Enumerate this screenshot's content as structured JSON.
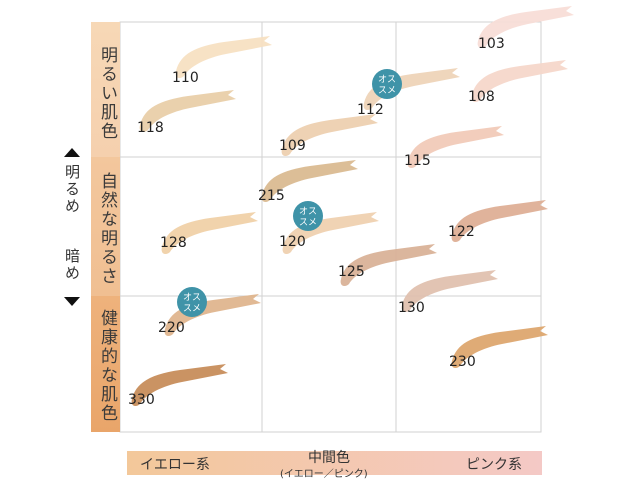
{
  "rows": [
    {
      "label": "明るい肌色",
      "color_top": "#f7d8b6",
      "color_bottom": "#f5d0ae"
    },
    {
      "label": "自然な明るさ",
      "color_top": "#f3c79d",
      "color_bottom": "#f0bf92"
    },
    {
      "label": "健康的な肌色",
      "color_top": "#eeb27c",
      "color_bottom": "#e9a56a"
    }
  ],
  "side_axis": {
    "top": "明るめ",
    "bottom": "暗め"
  },
  "bottom_axis": {
    "left": "イエロー系",
    "center": "中間色",
    "center_sub": "(イエロー／ピンク)",
    "right": "ピンク系",
    "color_left": "#f3c89a",
    "color_right": "#f4c9c6"
  },
  "badge": {
    "text_line1": "オス",
    "text_line2": "スメ",
    "color": "#3f93a8"
  },
  "shades": [
    {
      "id": "103",
      "color": "#f7dcd6",
      "recommended": false
    },
    {
      "id": "110",
      "color": "#f6e0c0",
      "recommended": false
    },
    {
      "id": "112",
      "color": "#eed3b6",
      "recommended": true
    },
    {
      "id": "108",
      "color": "#f5d6c9",
      "recommended": false
    },
    {
      "id": "118",
      "color": "#e8cda6",
      "recommended": false
    },
    {
      "id": "109",
      "color": "#edceae",
      "recommended": false
    },
    {
      "id": "115",
      "color": "#f1c9b6",
      "recommended": false
    },
    {
      "id": "215",
      "color": "#d9b98e",
      "recommended": false
    },
    {
      "id": "128",
      "color": "#f0cfa5",
      "recommended": false
    },
    {
      "id": "120",
      "color": "#efcfae",
      "recommended": true
    },
    {
      "id": "122",
      "color": "#ddac92",
      "recommended": false
    },
    {
      "id": "125",
      "color": "#d8b095",
      "recommended": false
    },
    {
      "id": "220",
      "color": "#deb38b",
      "recommended": true
    },
    {
      "id": "130",
      "color": "#dfbfac",
      "recommended": false
    },
    {
      "id": "230",
      "color": "#dca46a",
      "recommended": false
    },
    {
      "id": "330",
      "color": "#c58a56",
      "recommended": false
    }
  ]
}
